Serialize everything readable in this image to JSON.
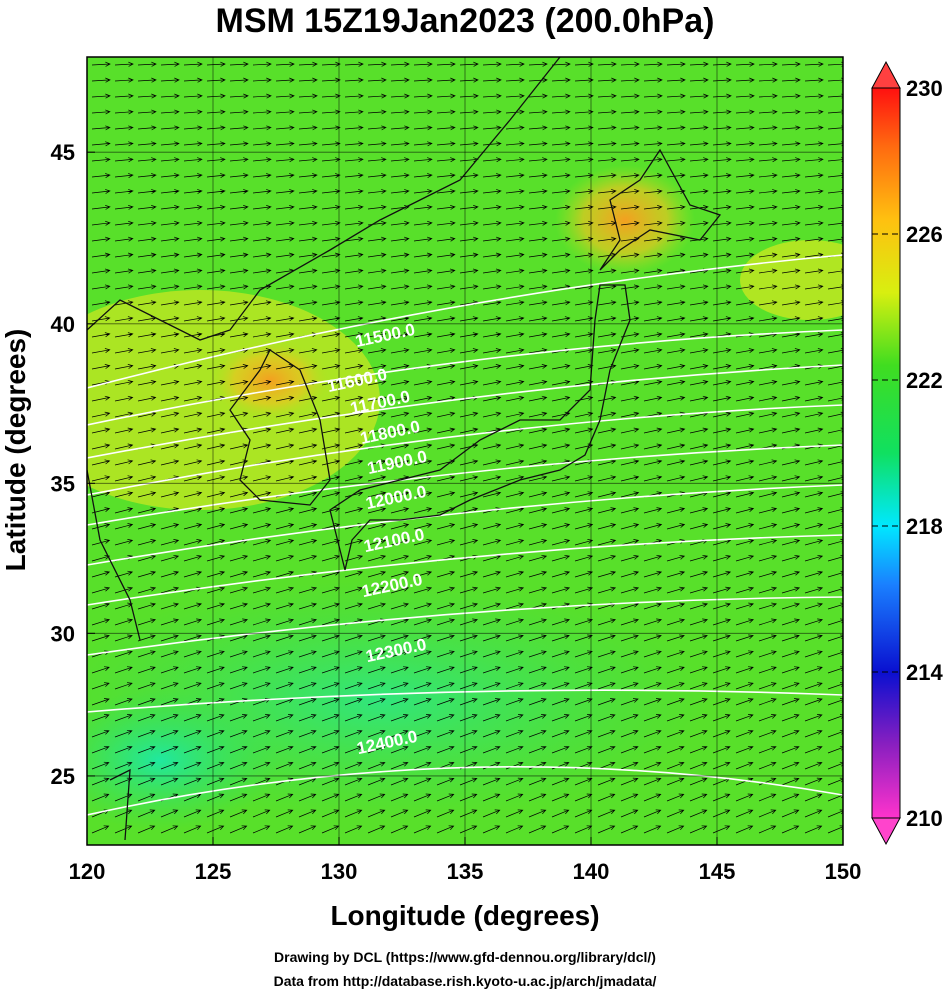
{
  "header": {
    "title": "MSM 15Z19Jan2023 (200.0hPa)"
  },
  "map": {
    "xlabel": "Longitude (degrees)",
    "ylabel": "Latitude  (degrees)",
    "xlim": [
      120,
      150
    ],
    "ylim": [
      22.5,
      47.6
    ],
    "xticks": [
      120,
      125,
      130,
      135,
      140,
      145,
      150
    ],
    "yticks": [
      25,
      30,
      35,
      40,
      45
    ],
    "colorbar": {
      "lim": [
        210,
        230
      ],
      "ticks": [
        210,
        214,
        218,
        222,
        226,
        230
      ]
    },
    "contour_labels": [
      "11500.0",
      "11600.0",
      "11700.0",
      "11800.0",
      "11900.0",
      "12000.0",
      "12100.0",
      "12200.0",
      "12300.0",
      "12400.0"
    ]
  },
  "footer": {
    "lines": [
      "Drawing by DCL (https://www.gfd-dennou.org/library/dcl/)",
      "Data from http://database.rish.kyoto-u.ac.jp/arch/jmadata/"
    ]
  }
}
